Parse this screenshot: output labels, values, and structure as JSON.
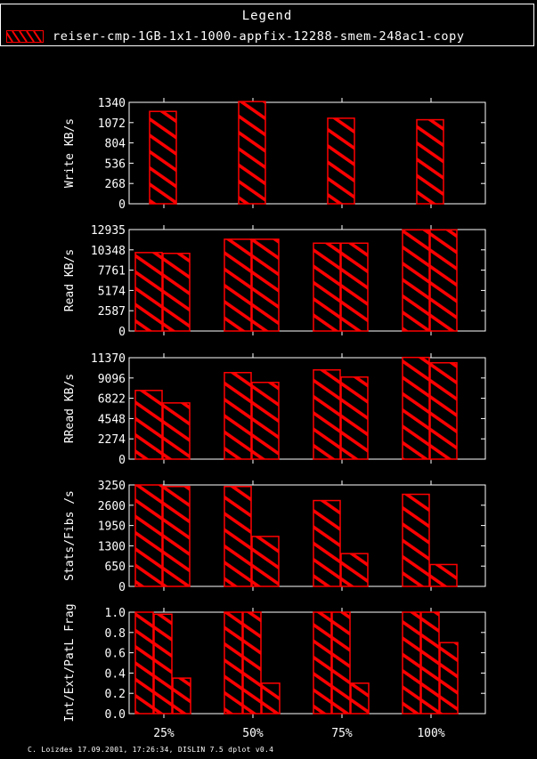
{
  "legend": {
    "title": "Legend",
    "entry": "reiser-cmp-1GB-1x1-1000-appfix-12288-smem-248ac1-copy"
  },
  "colors": {
    "background": "#000000",
    "axes": "#ffffff",
    "bar": "#ff0000"
  },
  "footer": "C. Loizdes 17.09.2001, 17:26:34, DISLIN 7.5 dplot v0.4",
  "chart_data": [
    {
      "type": "bar",
      "ylabel": "Write KB/s",
      "categories": [
        "25%",
        "50%",
        "75%",
        "100%"
      ],
      "yticks": [
        "0",
        "268",
        "536",
        "804",
        "1072",
        "1340"
      ],
      "ylim": [
        0,
        1340
      ],
      "series": [
        {
          "values": [
            1220,
            1350,
            1130,
            1110
          ]
        }
      ]
    },
    {
      "type": "bar",
      "ylabel": "Read KB/s",
      "categories": [
        "25%",
        "50%",
        "75%",
        "100%"
      ],
      "yticks": [
        "0",
        "2587",
        "5174",
        "7761",
        "10348",
        "12935"
      ],
      "ylim": [
        0,
        12935
      ],
      "series": [
        {
          "values": [
            10000,
            11700,
            11200,
            12900
          ]
        },
        {
          "values": [
            9900,
            11700,
            11200,
            12900
          ]
        }
      ]
    },
    {
      "type": "bar",
      "ylabel": "RRead KB/s",
      "categories": [
        "25%",
        "50%",
        "75%",
        "100%"
      ],
      "yticks": [
        "0",
        "2274",
        "4548",
        "6822",
        "9096",
        "11370"
      ],
      "ylim": [
        0,
        11370
      ],
      "series": [
        {
          "values": [
            7700,
            9700,
            10000,
            11400
          ]
        },
        {
          "values": [
            6300,
            8600,
            9200,
            10800
          ]
        }
      ]
    },
    {
      "type": "bar",
      "ylabel": "Stats/Fibs /s",
      "categories": [
        "25%",
        "50%",
        "75%",
        "100%"
      ],
      "yticks": [
        "0",
        "650",
        "1300",
        "1950",
        "2600",
        "3250"
      ],
      "ylim": [
        0,
        3250
      ],
      "series": [
        {
          "values": [
            3250,
            3200,
            2750,
            2950
          ]
        },
        {
          "values": [
            3200,
            1600,
            1050,
            700
          ]
        }
      ]
    },
    {
      "type": "bar",
      "ylabel": "Int/Ext/PatL Frag",
      "categories": [
        "25%",
        "50%",
        "75%",
        "100%"
      ],
      "yticks": [
        "0.0",
        "0.2",
        "0.4",
        "0.6",
        "0.8",
        "1.0"
      ],
      "ylim": [
        0,
        1.0
      ],
      "series": [
        {
          "values": [
            1.0,
            1.0,
            1.0,
            1.0
          ]
        },
        {
          "values": [
            0.98,
            1.0,
            1.0,
            1.0
          ]
        },
        {
          "values": [
            0.35,
            0.3,
            0.3,
            0.7
          ]
        }
      ]
    }
  ]
}
